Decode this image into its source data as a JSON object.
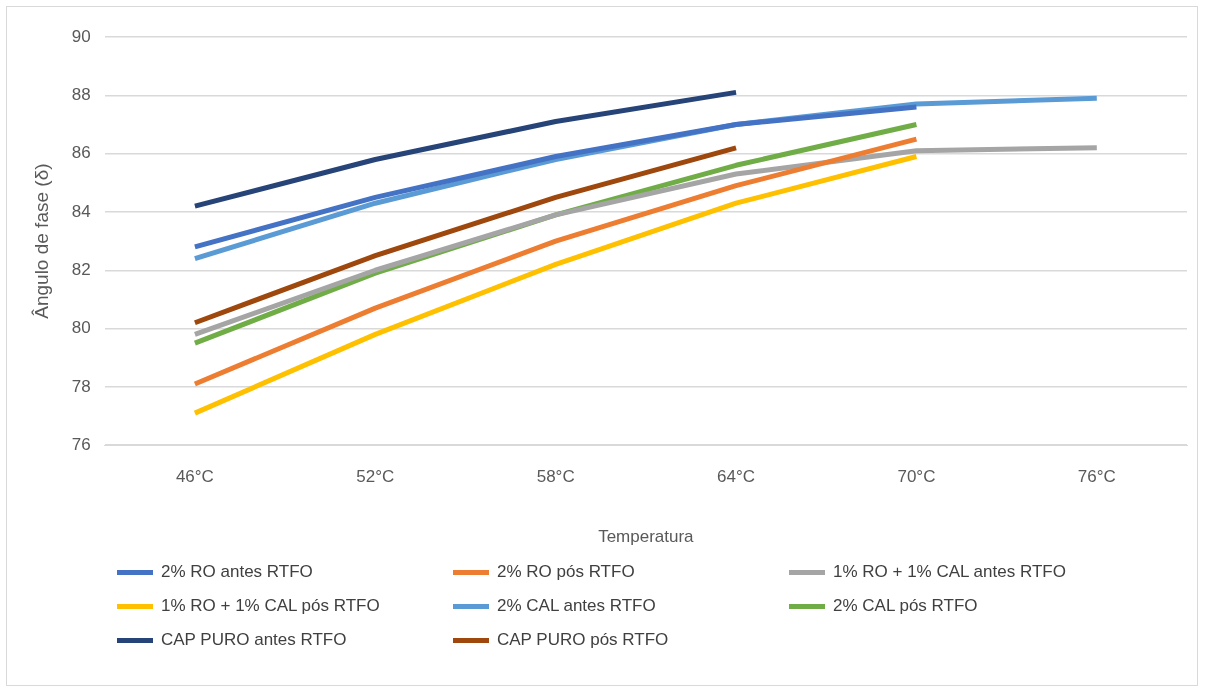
{
  "chart_data": {
    "type": "line",
    "xlabel": "Temperatura",
    "ylabel": "Ângulo de fase (δ)",
    "categories": [
      "46°C",
      "52°C",
      "58°C",
      "64°C",
      "70°C",
      "76°C"
    ],
    "ylim": [
      76,
      90
    ],
    "yticks": [
      76,
      78,
      80,
      82,
      84,
      86,
      88,
      90
    ],
    "grid": "y",
    "legend": "bottom",
    "marker": "none",
    "line_style": "solid",
    "series": [
      {
        "name": "2% RO antes RTFO",
        "color": "#4472c4",
        "values": [
          82.8,
          84.5,
          85.9,
          87.0,
          87.6,
          null
        ]
      },
      {
        "name": "2% RO pós RTFO",
        "color": "#ed7d31",
        "values": [
          78.1,
          80.7,
          83.0,
          84.9,
          86.5,
          null
        ]
      },
      {
        "name": "1% RO + 1% CAL antes RTFO",
        "color": "#a5a5a5",
        "values": [
          79.8,
          82.0,
          83.9,
          85.3,
          86.1,
          86.2
        ]
      },
      {
        "name": "1% RO + 1% CAL pós RTFO",
        "color": "#ffc000",
        "values": [
          77.1,
          79.8,
          82.2,
          84.3,
          85.9,
          null
        ]
      },
      {
        "name": "2% CAL antes RTFO",
        "color": "#5b9bd5",
        "values": [
          82.4,
          84.3,
          85.8,
          87.0,
          87.7,
          87.9
        ]
      },
      {
        "name": "2% CAL pós RTFO",
        "color": "#70ad47",
        "values": [
          79.5,
          81.9,
          83.9,
          85.6,
          87.0,
          null
        ]
      },
      {
        "name": "CAP PURO antes RTFO",
        "color": "#264478",
        "values": [
          84.2,
          85.8,
          87.1,
          88.1,
          null,
          null
        ]
      },
      {
        "name": "CAP PURO pós RTFO",
        "color": "#9e480e",
        "values": [
          80.2,
          82.5,
          84.5,
          86.2,
          null,
          null
        ]
      }
    ]
  }
}
